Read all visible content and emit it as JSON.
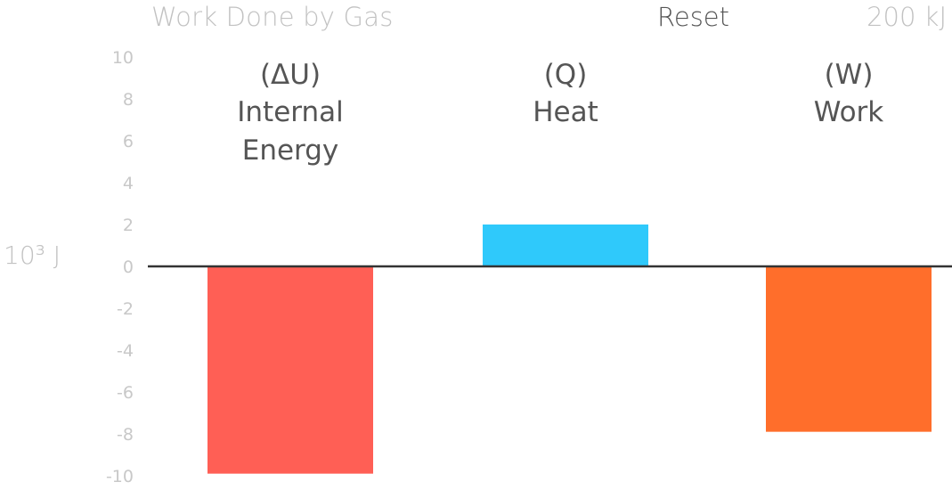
{
  "header": {
    "title": "Work Done by Gas",
    "reset_label": "Reset",
    "amount": "200 kJ"
  },
  "colors": {
    "internal_energy": "#ff5f55",
    "heat": "#2fc9fb",
    "work": "#ff6e2b",
    "baseline": "#333333",
    "tick_text": "#c8c8c8",
    "label_text": "#555555"
  },
  "chart_data": {
    "type": "bar",
    "ylabel": "10³ J",
    "ylim": [
      -10,
      10
    ],
    "y_ticks": [
      "10",
      "8",
      "6",
      "4",
      "2",
      "0",
      "-2",
      "-4",
      "-6",
      "-8",
      "-10"
    ],
    "y_tick_values": [
      10,
      8,
      6,
      4,
      2,
      0,
      -2,
      -4,
      -6,
      -8,
      -10
    ],
    "bars": [
      {
        "symbol": "(ΔU)",
        "label_lines": [
          "Internal",
          "Energy"
        ],
        "value": -9.9,
        "color": "#ff5f55"
      },
      {
        "symbol": "(Q)",
        "label_lines": [
          "Heat"
        ],
        "value": 2.0,
        "color": "#2fc9fb"
      },
      {
        "symbol": "(W)",
        "label_lines": [
          "Work"
        ],
        "value": -7.9,
        "color": "#ff6e2b"
      }
    ],
    "grid": false,
    "legend": "none"
  }
}
